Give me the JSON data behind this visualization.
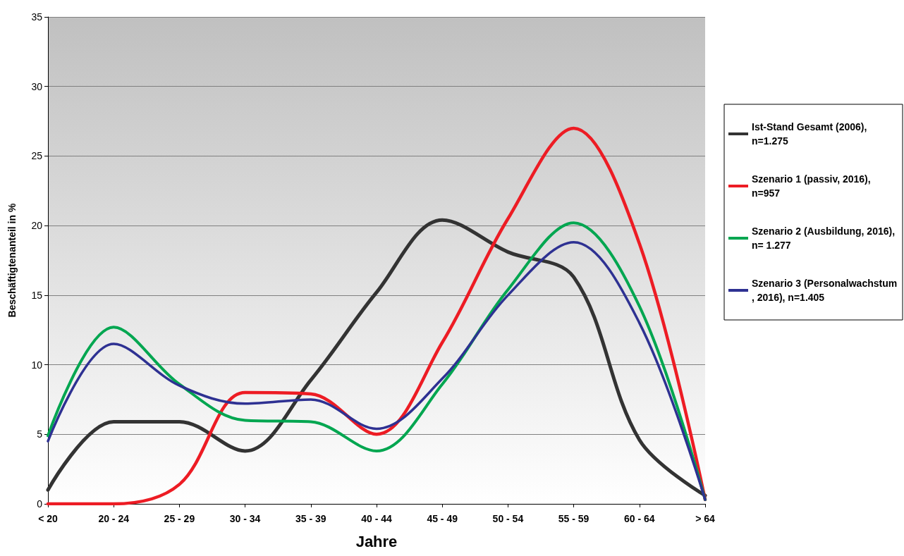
{
  "chart_data": {
    "type": "line",
    "xlabel": "Jahre",
    "ylabel": "Beschäftigtenanteil in %",
    "categories": [
      "< 20",
      "20 - 24",
      "25 - 29",
      "30 - 34",
      "35 - 39",
      "40 - 44",
      "45 - 49",
      "50 - 54",
      "55 - 59",
      "60 - 64",
      "> 64"
    ],
    "series": [
      {
        "name": "Ist-Stand Gesamt (2006), n=1.275",
        "color": "#333333",
        "values": [
          1.0,
          5.9,
          5.9,
          3.8,
          8.9,
          15.2,
          20.4,
          18.1,
          16.3,
          4.6,
          0.6
        ]
      },
      {
        "name": "Szenario 1 (passiv, 2016), n=957",
        "color": "#ed1c24",
        "values": [
          0,
          0,
          1.4,
          8.0,
          7.9,
          5.0,
          11.6,
          20.5,
          27.0,
          18.7,
          0.3
        ]
      },
      {
        "name": "Szenario 2 (Ausbildung, 2016), n= 1.277",
        "color": "#00a650",
        "values": [
          4.9,
          12.7,
          8.6,
          6.0,
          5.9,
          3.8,
          8.6,
          15.4,
          20.2,
          14.2,
          0.3
        ]
      },
      {
        "name": "Szenario 3 (Personalwachstum, 2016), n=1.405",
        "color": "#2e3192",
        "values": [
          4.5,
          11.5,
          8.5,
          7.2,
          7.5,
          5.4,
          9.0,
          15.0,
          18.8,
          13.0,
          0.3
        ]
      }
    ],
    "ylim": [
      0,
      35
    ],
    "yticks": [
      0,
      5,
      10,
      15,
      20,
      25,
      30,
      35
    ],
    "grid": "y",
    "legend": "right",
    "marker": "none",
    "line_style": "solid"
  }
}
